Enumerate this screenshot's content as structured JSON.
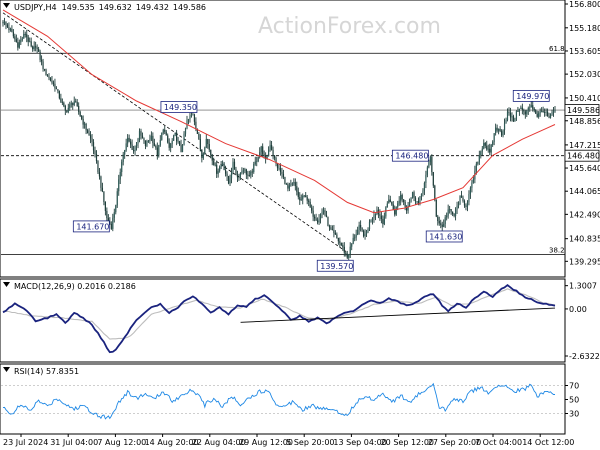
{
  "chart_data": {
    "type": "candlestick",
    "header": {
      "symbol": "USDJPY,H4",
      "open": "149.535",
      "high": "149.632",
      "low": "149.432",
      "close": "149.586"
    },
    "watermark": "ActionForex.com",
    "price_axis": {
      "range": [
        138.5,
        156.8
      ],
      "ticks": [
        "156.800",
        "155.180",
        "153.605",
        "152.030",
        "150.410",
        "148.856",
        "147.215",
        "145.640",
        "144.065",
        "142.490",
        "140.835",
        "139.295"
      ]
    },
    "x_axis_labels": [
      "23 Jul 2024",
      "31 Jul 04:00",
      "7 Aug 12:00",
      "14 Aug 20:00",
      "22 Aug 04:00",
      "29 Aug 12:00",
      "5 Sep 20:00",
      "13 Sep 04:00",
      "20 Sep 12:00",
      "27 Sep 20:00",
      "7 Oct 04:00",
      "14 Oct 12:00"
    ],
    "price_path": [
      [
        0,
        155.6
      ],
      [
        5,
        155.0
      ],
      [
        10,
        154.0
      ],
      [
        15,
        154.8
      ],
      [
        20,
        153.6
      ],
      [
        22,
        154.0
      ],
      [
        28,
        152.2
      ],
      [
        35,
        151.2
      ],
      [
        42,
        149.5
      ],
      [
        48,
        150.2
      ],
      [
        55,
        148.5
      ],
      [
        60,
        147.4
      ],
      [
        65,
        145.0
      ],
      [
        70,
        142.2
      ],
      [
        73,
        141.67
      ],
      [
        76,
        143.2
      ],
      [
        80,
        146.2
      ],
      [
        84,
        147.6
      ],
      [
        88,
        146.8
      ],
      [
        92,
        148.0
      ],
      [
        96,
        147.2
      ],
      [
        100,
        147.8
      ],
      [
        104,
        146.6
      ],
      [
        108,
        148.4
      ],
      [
        112,
        147.0
      ],
      [
        116,
        147.9
      ],
      [
        120,
        146.8
      ],
      [
        124,
        148.8
      ],
      [
        128,
        149.35
      ],
      [
        131,
        148.0
      ],
      [
        134,
        146.4
      ],
      [
        137,
        147.6
      ],
      [
        140,
        146.6
      ],
      [
        144,
        145.4
      ],
      [
        148,
        146.0
      ],
      [
        152,
        144.6
      ],
      [
        155,
        145.9
      ],
      [
        158,
        145.0
      ],
      [
        162,
        145.6
      ],
      [
        166,
        145.0
      ],
      [
        170,
        146.0
      ],
      [
        174,
        147.0
      ],
      [
        177,
        146.1
      ],
      [
        180,
        147.3
      ],
      [
        184,
        145.9
      ],
      [
        188,
        145.2
      ],
      [
        192,
        144.2
      ],
      [
        196,
        144.6
      ],
      [
        200,
        143.4
      ],
      [
        204,
        143.8
      ],
      [
        208,
        142.6
      ],
      [
        212,
        142.1
      ],
      [
        216,
        142.8
      ],
      [
        220,
        141.5
      ],
      [
        224,
        141.0
      ],
      [
        228,
        140.4
      ],
      [
        232,
        139.57
      ],
      [
        236,
        140.8
      ],
      [
        240,
        141.6
      ],
      [
        244,
        141.0
      ],
      [
        248,
        142.2
      ],
      [
        252,
        142.8
      ],
      [
        256,
        142.0
      ],
      [
        260,
        143.6
      ],
      [
        264,
        142.6
      ],
      [
        268,
        143.8
      ],
      [
        272,
        142.9
      ],
      [
        276,
        143.9
      ],
      [
        280,
        143.2
      ],
      [
        284,
        144.6
      ],
      [
        288,
        146.48
      ],
      [
        292,
        142.3
      ],
      [
        296,
        141.63
      ],
      [
        300,
        142.8
      ],
      [
        304,
        142.4
      ],
      [
        308,
        143.6
      ],
      [
        312,
        143.1
      ],
      [
        316,
        144.5
      ],
      [
        320,
        146.2
      ],
      [
        324,
        147.4
      ],
      [
        328,
        146.6
      ],
      [
        332,
        148.4
      ],
      [
        336,
        148.0
      ],
      [
        340,
        149.4
      ],
      [
        344,
        148.9
      ],
      [
        348,
        149.8
      ],
      [
        352,
        149.3
      ],
      [
        356,
        149.97
      ],
      [
        360,
        149.2
      ],
      [
        364,
        149.6
      ],
      [
        368,
        149.0
      ],
      [
        372,
        149.586
      ]
    ],
    "ema_path": [
      [
        0,
        156.4
      ],
      [
        30,
        154.6
      ],
      [
        60,
        152.0
      ],
      [
        90,
        150.2
      ],
      [
        120,
        148.8
      ],
      [
        150,
        147.3
      ],
      [
        180,
        146.2
      ],
      [
        210,
        144.8
      ],
      [
        232,
        143.3
      ],
      [
        250,
        142.6
      ],
      [
        270,
        142.9
      ],
      [
        290,
        143.5
      ],
      [
        310,
        144.3
      ],
      [
        330,
        146.5
      ],
      [
        350,
        147.6
      ],
      [
        372,
        148.6
      ]
    ],
    "reference_lines": [
      {
        "name": "fib-61.8",
        "label": "61.8",
        "value": 153.45,
        "style": "solid"
      },
      {
        "name": "close",
        "value": 149.586,
        "style": "solid"
      },
      {
        "name": "resistance",
        "value": 146.48,
        "style": "dashed"
      },
      {
        "name": "fib-38.2",
        "label": "38.2",
        "value": 139.75,
        "style": "solid"
      }
    ],
    "trend_line_price": {
      "from": [
        0,
        156.2
      ],
      "to": [
        232,
        139.9
      ]
    },
    "price_annotations": [
      {
        "text": "141.670",
        "i": 73,
        "value": 141.67,
        "pos": "left"
      },
      {
        "text": "149.350",
        "i": 128,
        "value": 149.35,
        "pos": "above-left"
      },
      {
        "text": "139.570",
        "i": 232,
        "value": 139.57,
        "pos": "below-left"
      },
      {
        "text": "146.480",
        "i": 288,
        "value": 146.48,
        "pos": "left"
      },
      {
        "text": "141.630",
        "i": 296,
        "value": 141.63,
        "pos": "below"
      },
      {
        "text": "149.970",
        "i": 356,
        "value": 149.97,
        "pos": "above"
      }
    ],
    "axis_badges": [
      {
        "text": "149.586",
        "value": 149.586
      },
      {
        "text": "146.480",
        "value": 146.48
      }
    ],
    "macd": {
      "label": "MACD(12,26,9) 0.2016 0.2186",
      "range": [
        -2.8,
        1.45
      ],
      "ticks": [
        "1.3007",
        "0.00",
        "-2.6322"
      ],
      "macd_path": [
        [
          0,
          -0.2
        ],
        [
          8,
          0.3
        ],
        [
          16,
          -0.1
        ],
        [
          22,
          -0.7
        ],
        [
          30,
          -0.5
        ],
        [
          36,
          -0.3
        ],
        [
          42,
          -0.8
        ],
        [
          48,
          -0.2
        ],
        [
          54,
          -0.5
        ],
        [
          60,
          -0.9
        ],
        [
          66,
          -1.6
        ],
        [
          72,
          -2.45
        ],
        [
          76,
          -2.3
        ],
        [
          82,
          -1.6
        ],
        [
          88,
          -0.8
        ],
        [
          94,
          -0.3
        ],
        [
          100,
          0.1
        ],
        [
          106,
          0.25
        ],
        [
          112,
          -0.2
        ],
        [
          118,
          0.1
        ],
        [
          124,
          0.55
        ],
        [
          128,
          0.7
        ],
        [
          134,
          0.3
        ],
        [
          140,
          -0.2
        ],
        [
          146,
          0.1
        ],
        [
          152,
          -0.3
        ],
        [
          158,
          0.2
        ],
        [
          164,
          0.1
        ],
        [
          170,
          0.55
        ],
        [
          176,
          0.75
        ],
        [
          182,
          0.4
        ],
        [
          188,
          -0.1
        ],
        [
          194,
          -0.6
        ],
        [
          200,
          -0.4
        ],
        [
          206,
          -0.7
        ],
        [
          212,
          -0.5
        ],
        [
          218,
          -0.8
        ],
        [
          224,
          -0.5
        ],
        [
          230,
          -0.2
        ],
        [
          236,
          -0.1
        ],
        [
          242,
          0.2
        ],
        [
          248,
          0.5
        ],
        [
          254,
          0.3
        ],
        [
          260,
          0.6
        ],
        [
          266,
          0.4
        ],
        [
          272,
          0.2
        ],
        [
          278,
          0.35
        ],
        [
          284,
          0.7
        ],
        [
          290,
          0.85
        ],
        [
          296,
          0.2
        ],
        [
          300,
          -0.1
        ],
        [
          306,
          0.3
        ],
        [
          312,
          0.1
        ],
        [
          318,
          0.6
        ],
        [
          324,
          0.95
        ],
        [
          330,
          0.7
        ],
        [
          336,
          1.1
        ],
        [
          340,
          1.3
        ],
        [
          346,
          1.0
        ],
        [
          352,
          0.65
        ],
        [
          358,
          0.45
        ],
        [
          364,
          0.3
        ],
        [
          368,
          0.22
        ],
        [
          372,
          0.2016
        ]
      ],
      "signal_path": [
        [
          0,
          -0.1
        ],
        [
          20,
          -0.4
        ],
        [
          40,
          -0.5
        ],
        [
          60,
          -0.7
        ],
        [
          72,
          -1.7
        ],
        [
          85,
          -1.6
        ],
        [
          100,
          -0.3
        ],
        [
          115,
          0.1
        ],
        [
          130,
          0.5
        ],
        [
          145,
          0.1
        ],
        [
          160,
          0.05
        ],
        [
          175,
          0.55
        ],
        [
          190,
          0.1
        ],
        [
          205,
          -0.5
        ],
        [
          220,
          -0.6
        ],
        [
          235,
          -0.25
        ],
        [
          250,
          0.25
        ],
        [
          265,
          0.45
        ],
        [
          280,
          0.3
        ],
        [
          292,
          0.65
        ],
        [
          302,
          0.2
        ],
        [
          315,
          0.3
        ],
        [
          328,
          0.75
        ],
        [
          340,
          1.1
        ],
        [
          352,
          0.8
        ],
        [
          364,
          0.35
        ],
        [
          372,
          0.2186
        ]
      ],
      "trend_line": {
        "from": [
          150,
          -0.75
        ],
        "to": [
          372,
          0.05
        ]
      }
    },
    "rsi": {
      "label": "RSI(14) 57.8351",
      "range": [
        5,
        95
      ],
      "ticks": [
        "70",
        "50",
        "30"
      ],
      "levels": [
        70,
        30
      ],
      "rsi_path": [
        [
          0,
          38
        ],
        [
          6,
          30
        ],
        [
          12,
          42
        ],
        [
          18,
          34
        ],
        [
          24,
          48
        ],
        [
          30,
          40
        ],
        [
          36,
          52
        ],
        [
          42,
          44
        ],
        [
          48,
          36
        ],
        [
          54,
          42
        ],
        [
          60,
          32
        ],
        [
          66,
          26
        ],
        [
          72,
          24
        ],
        [
          78,
          46
        ],
        [
          84,
          60
        ],
        [
          90,
          52
        ],
        [
          96,
          58
        ],
        [
          102,
          50
        ],
        [
          108,
          62
        ],
        [
          114,
          48
        ],
        [
          120,
          55
        ],
        [
          126,
          64
        ],
        [
          130,
          60
        ],
        [
          136,
          42
        ],
        [
          142,
          52
        ],
        [
          148,
          40
        ],
        [
          154,
          54
        ],
        [
          160,
          44
        ],
        [
          166,
          52
        ],
        [
          172,
          60
        ],
        [
          178,
          64
        ],
        [
          184,
          44
        ],
        [
          190,
          40
        ],
        [
          196,
          48
        ],
        [
          202,
          36
        ],
        [
          208,
          42
        ],
        [
          214,
          36
        ],
        [
          220,
          38
        ],
        [
          226,
          32
        ],
        [
          232,
          28
        ],
        [
          238,
          46
        ],
        [
          244,
          54
        ],
        [
          250,
          50
        ],
        [
          256,
          60
        ],
        [
          262,
          46
        ],
        [
          268,
          56
        ],
        [
          274,
          44
        ],
        [
          280,
          58
        ],
        [
          286,
          64
        ],
        [
          290,
          70
        ],
        [
          294,
          38
        ],
        [
          298,
          36
        ],
        [
          304,
          52
        ],
        [
          310,
          48
        ],
        [
          316,
          62
        ],
        [
          322,
          68
        ],
        [
          328,
          58
        ],
        [
          334,
          70
        ],
        [
          340,
          68
        ],
        [
          346,
          62
        ],
        [
          352,
          66
        ],
        [
          356,
          70
        ],
        [
          360,
          55
        ],
        [
          366,
          62
        ],
        [
          372,
          57.8351
        ]
      ]
    }
  }
}
